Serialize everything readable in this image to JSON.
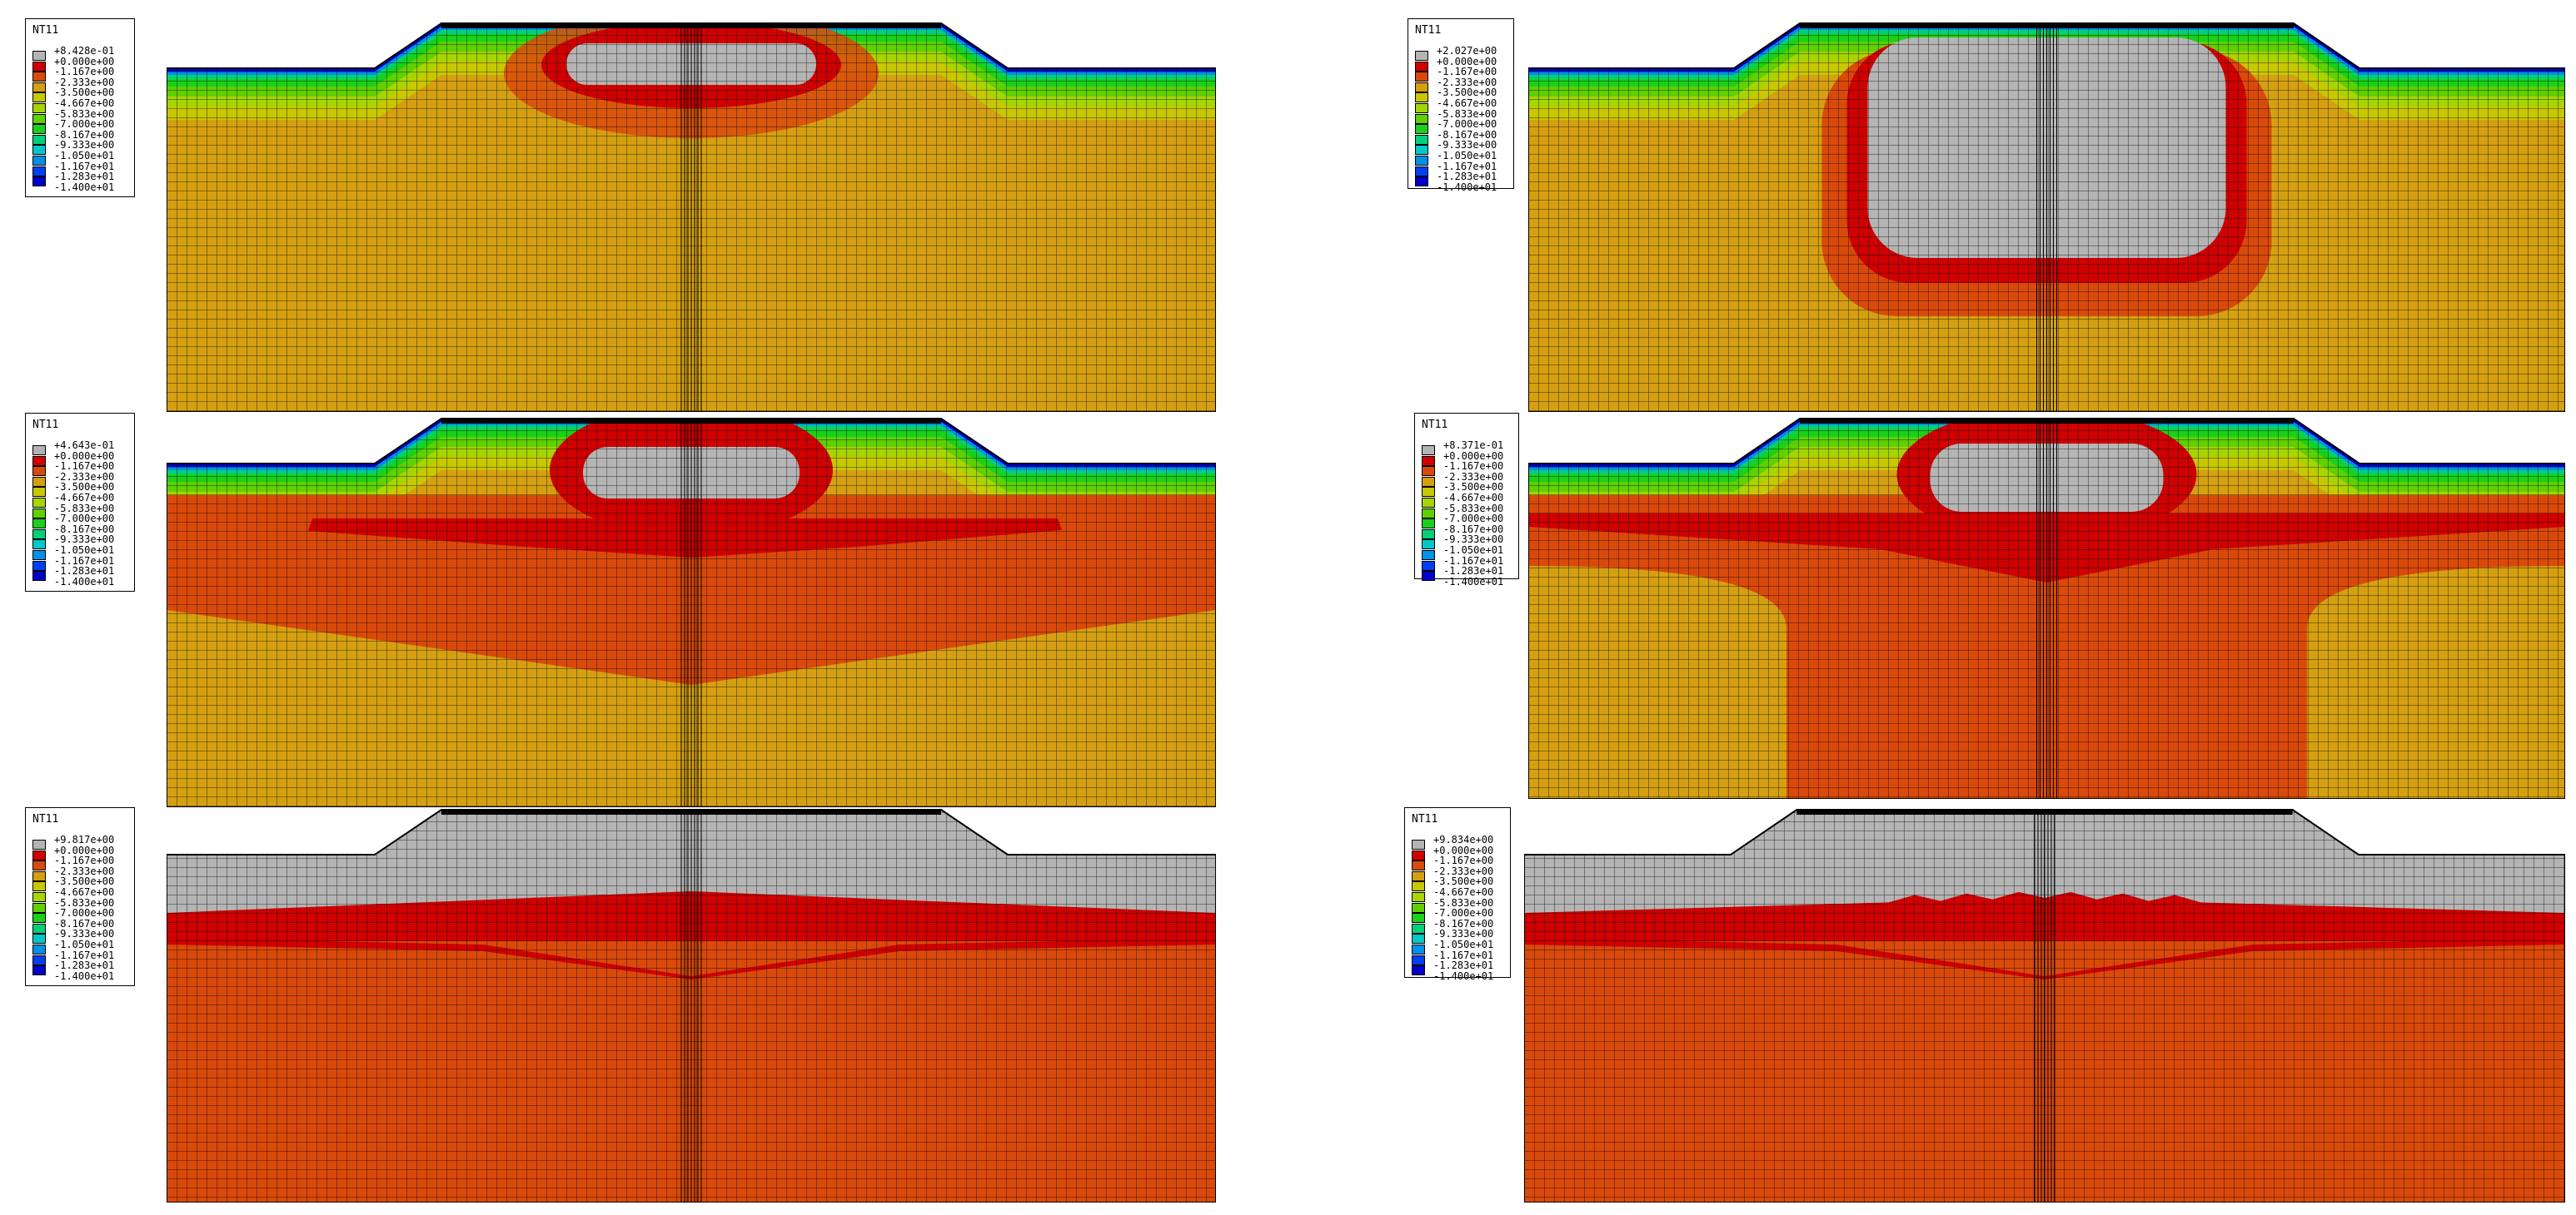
{
  "colors": {
    "c0": "#b4b4b4",
    "c1": "#d00000",
    "c2": "#d94a0a",
    "c3": "#d5a010",
    "c4": "#c8c800",
    "c5": "#a6d500",
    "c6": "#5fd000",
    "c7": "#1ad01a",
    "c8": "#00d07a",
    "c9": "#00c8c8",
    "c10": "#0090e8",
    "c11": "#0040f0",
    "c12": "#0000c8",
    "mesh": "#000000"
  },
  "panels": [
    {
      "id": "p1",
      "legend": {
        "title": "NT11",
        "values": [
          "+8.428e-01",
          "+0.000e+00",
          "-1.167e+00",
          "-2.333e+00",
          "-3.500e+00",
          "-4.667e+00",
          "-5.833e+00",
          "-7.000e+00",
          "-8.167e+00",
          "-9.333e+00",
          "-1.050e+01",
          "-1.167e+01",
          "-1.283e+01",
          "-1.400e+01"
        ]
      },
      "state": "early-small"
    },
    {
      "id": "p2",
      "legend": {
        "title": "NT11",
        "values": [
          "+2.027e+00",
          "+0.000e+00",
          "-1.167e+00",
          "-2.333e+00",
          "-3.500e+00",
          "-4.667e+00",
          "-5.833e+00",
          "-7.000e+00",
          "-8.167e+00",
          "-9.333e+00",
          "-1.050e+01",
          "-1.167e+01",
          "-1.283e+01",
          "-1.400e+01"
        ]
      },
      "state": "early-large"
    },
    {
      "id": "p3",
      "legend": {
        "title": "NT11",
        "values": [
          "+4.643e-01",
          "+0.000e+00",
          "-1.167e+00",
          "-2.333e+00",
          "-3.500e+00",
          "-4.667e+00",
          "-5.833e+00",
          "-7.000e+00",
          "-8.167e+00",
          "-9.333e+00",
          "-1.050e+01",
          "-1.167e+01",
          "-1.283e+01",
          "-1.400e+01"
        ]
      },
      "state": "mid-small"
    },
    {
      "id": "p4",
      "legend": {
        "title": "NT11",
        "values": [
          "+8.371e-01",
          "+0.000e+00",
          "-1.167e+00",
          "-2.333e+00",
          "-3.500e+00",
          "-4.667e+00",
          "-5.833e+00",
          "-7.000e+00",
          "-8.167e+00",
          "-9.333e+00",
          "-1.050e+01",
          "-1.167e+01",
          "-1.283e+01",
          "-1.400e+01"
        ]
      },
      "state": "mid-large"
    },
    {
      "id": "p5",
      "legend": {
        "title": "NT11",
        "values": [
          "+9.817e+00",
          "+0.000e+00",
          "-1.167e+00",
          "-2.333e+00",
          "-3.500e+00",
          "-4.667e+00",
          "-5.833e+00",
          "-7.000e+00",
          "-8.167e+00",
          "-9.333e+00",
          "-1.050e+01",
          "-1.167e+01",
          "-1.283e+01",
          "-1.400e+01"
        ]
      },
      "state": "late-small"
    },
    {
      "id": "p6",
      "legend": {
        "title": "NT11",
        "values": [
          "+9.834e+00",
          "+0.000e+00",
          "-1.167e+00",
          "-2.333e+00",
          "-3.500e+00",
          "-4.667e+00",
          "-5.833e+00",
          "-7.000e+00",
          "-8.167e+00",
          "-9.333e+00",
          "-1.050e+01",
          "-1.167e+01",
          "-1.283e+01",
          "-1.400e+01"
        ]
      },
      "state": "late-large"
    }
  ]
}
